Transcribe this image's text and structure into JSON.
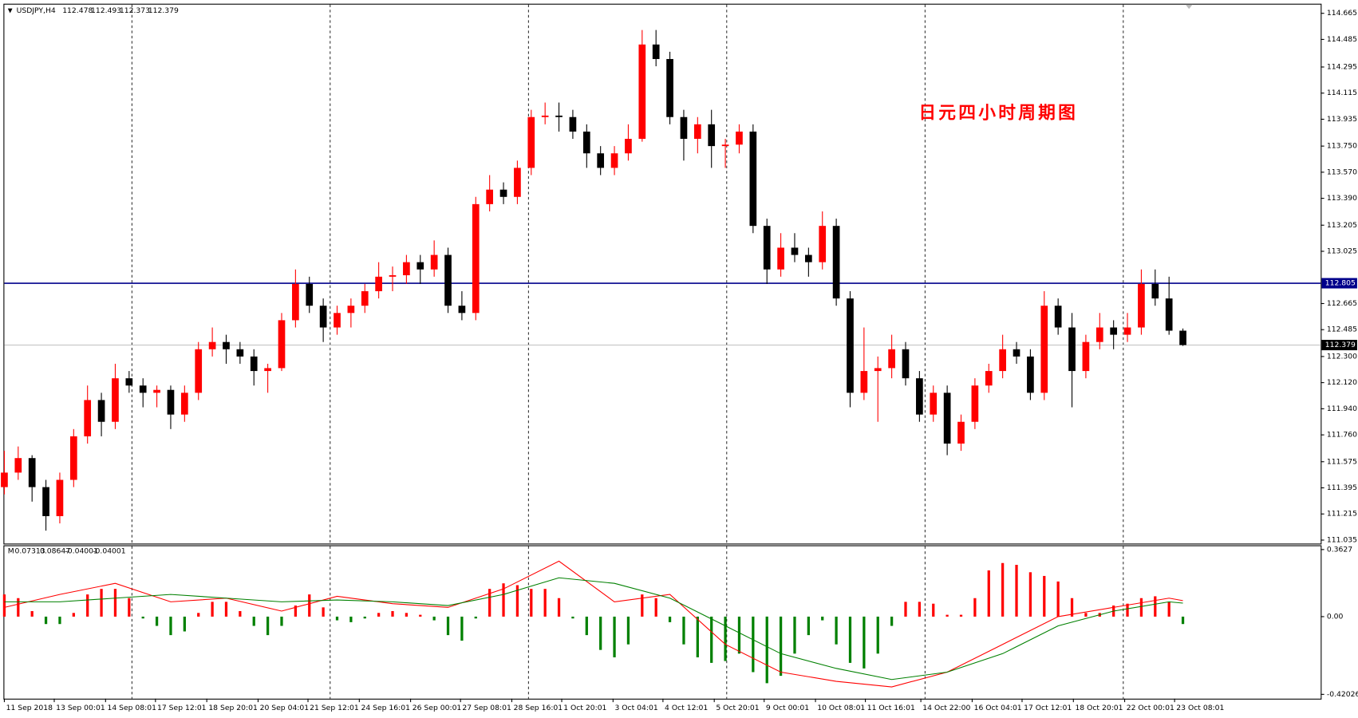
{
  "chart_data": {
    "type": "candlestick",
    "symbol": "USDJPY,H4",
    "annotation": "日元四小时周期图",
    "bull_color": "#ff0000",
    "bear_color": "#000000",
    "ylim": [
      111.011,
      114.725
    ],
    "xlim": [
      0,
      94.94
    ],
    "yticks": [
      114.665,
      114.485,
      114.295,
      114.115,
      113.935,
      {
        "value": 113.75,
        "label": "113.750"
      },
      {
        "value": 113.57,
        "label": "113.570"
      },
      {
        "value": 113.39,
        "label": "113.390"
      },
      113.205,
      113.025,
      112.665,
      112.485,
      {
        "value": 112.3,
        "label": "112.300"
      },
      {
        "value": 112.12,
        "label": "112.120"
      },
      {
        "value": 111.94,
        "label": "111.940"
      },
      {
        "value": 111.76,
        "label": "111.760"
      },
      111.575,
      111.395,
      111.215,
      111.035
    ],
    "hline": {
      "value": 112.805,
      "color": "#00008b"
    },
    "separators": [
      9.2,
      23.5,
      37.8,
      52.1,
      66.4,
      80.7
    ],
    "xticks": [
      {
        "value": 0,
        "label": "11 Sep 2018"
      },
      {
        "value": 3.6,
        "label": "13 Sep 00:01"
      },
      {
        "value": 7.3,
        "label": "14 Sep 08:01"
      },
      {
        "value": 10.9,
        "label": "17 Sep 12:01"
      },
      {
        "value": 14.6,
        "label": "18 Sep 20:01"
      },
      {
        "value": 18.3,
        "label": "20 Sep 04:01"
      },
      {
        "value": 21.9,
        "label": "21 Sep 12:01"
      },
      {
        "value": 25.6,
        "label": "24 Sep 16:01"
      },
      {
        "value": 29.3,
        "label": "26 Sep 00:01"
      },
      {
        "value": 32.9,
        "label": "27 Sep 08:01"
      },
      {
        "value": 36.6,
        "label": "28 Sep 16:01"
      },
      {
        "value": 40.2,
        "label": "1 Oct 20:01"
      },
      {
        "value": 43.9,
        "label": "3 Oct 04:01"
      },
      {
        "value": 47.5,
        "label": "4 Oct 12:01"
      },
      {
        "value": 51.2,
        "label": "5 Oct 20:01"
      },
      {
        "value": 54.8,
        "label": "9 Oct 00:01"
      },
      {
        "value": 58.5,
        "label": "10 Oct 08:01"
      },
      {
        "value": 62.1,
        "label": "11 Oct 16:01"
      },
      {
        "value": 66.1,
        "label": "14 Oct 22:00"
      },
      {
        "value": 69.8,
        "label": "16 Oct 04:01"
      },
      {
        "value": 73.4,
        "label": "17 Oct 12:01"
      },
      {
        "value": 77.1,
        "label": "18 Oct 20:01"
      },
      {
        "value": 80.8,
        "label": "22 Oct 00:01"
      },
      {
        "value": 84.4,
        "label": "23 Oct 08:01"
      }
    ],
    "ohlc": [
      [
        111.4,
        111.65,
        111.35,
        111.5
      ],
      [
        111.5,
        111.68,
        111.45,
        111.6
      ],
      [
        111.6,
        111.62,
        111.3,
        111.4
      ],
      [
        111.4,
        111.45,
        111.1,
        111.2
      ],
      [
        111.2,
        111.5,
        111.15,
        111.45
      ],
      [
        111.45,
        111.8,
        111.4,
        111.75
      ],
      [
        111.75,
        112.1,
        111.7,
        112.0
      ],
      [
        112.0,
        112.05,
        111.75,
        111.85
      ],
      [
        111.85,
        112.25,
        111.8,
        112.15
      ],
      [
        112.15,
        112.2,
        112.05,
        112.1
      ],
      [
        112.1,
        112.15,
        111.95,
        112.05
      ],
      [
        112.05,
        112.1,
        111.95,
        112.07
      ],
      [
        112.07,
        112.1,
        111.8,
        111.9
      ],
      [
        111.9,
        112.1,
        111.85,
        112.05
      ],
      [
        112.05,
        112.4,
        112.0,
        112.35
      ],
      [
        112.35,
        112.5,
        112.3,
        112.4
      ],
      [
        112.4,
        112.45,
        112.25,
        112.35
      ],
      [
        112.35,
        112.4,
        112.25,
        112.3
      ],
      [
        112.3,
        112.35,
        112.1,
        112.2
      ],
      [
        112.2,
        112.25,
        112.05,
        112.22
      ],
      [
        112.22,
        112.6,
        112.2,
        112.55
      ],
      [
        112.55,
        112.9,
        112.5,
        112.8
      ],
      [
        112.8,
        112.85,
        112.6,
        112.65
      ],
      [
        112.65,
        112.7,
        112.4,
        112.5
      ],
      [
        112.5,
        112.65,
        112.45,
        112.6
      ],
      [
        112.6,
        112.7,
        112.5,
        112.65
      ],
      [
        112.65,
        112.8,
        112.6,
        112.75
      ],
      [
        112.75,
        112.95,
        112.7,
        112.85
      ],
      [
        112.85,
        112.92,
        112.75,
        112.86
      ],
      [
        112.86,
        113.0,
        112.8,
        112.95
      ],
      [
        112.95,
        113.0,
        112.8,
        112.9
      ],
      [
        112.9,
        113.1,
        112.85,
        113.0
      ],
      [
        113.0,
        113.05,
        112.6,
        112.65
      ],
      [
        112.65,
        112.75,
        112.55,
        112.6
      ],
      [
        112.6,
        113.4,
        112.55,
        113.35
      ],
      [
        113.35,
        113.55,
        113.3,
        113.45
      ],
      [
        113.45,
        113.5,
        113.35,
        113.4
      ],
      [
        113.4,
        113.65,
        113.35,
        113.6
      ],
      [
        113.6,
        114.0,
        113.55,
        113.95
      ],
      [
        113.95,
        114.05,
        113.9,
        113.96
      ],
      [
        113.96,
        114.05,
        113.85,
        113.95
      ],
      [
        113.95,
        114.0,
        113.8,
        113.85
      ],
      [
        113.85,
        113.9,
        113.6,
        113.7
      ],
      [
        113.7,
        113.75,
        113.55,
        113.6
      ],
      [
        113.6,
        113.75,
        113.55,
        113.7
      ],
      [
        113.7,
        113.9,
        113.65,
        113.8
      ],
      [
        113.8,
        114.55,
        113.78,
        114.45
      ],
      [
        114.45,
        114.55,
        114.3,
        114.35
      ],
      [
        114.35,
        114.4,
        113.9,
        113.95
      ],
      [
        113.95,
        114.0,
        113.65,
        113.8
      ],
      [
        113.8,
        113.95,
        113.7,
        113.9
      ],
      [
        113.9,
        114.0,
        113.6,
        113.75
      ],
      [
        113.75,
        113.8,
        113.6,
        113.76
      ],
      [
        113.76,
        113.9,
        113.7,
        113.85
      ],
      [
        113.85,
        113.9,
        113.15,
        113.2
      ],
      [
        113.2,
        113.25,
        112.8,
        112.9
      ],
      [
        112.9,
        113.15,
        112.85,
        113.05
      ],
      [
        113.05,
        113.15,
        112.95,
        113.0
      ],
      [
        113.0,
        113.05,
        112.85,
        112.95
      ],
      [
        112.95,
        113.3,
        112.9,
        113.2
      ],
      [
        113.2,
        113.25,
        112.65,
        112.7
      ],
      [
        112.7,
        112.75,
        111.95,
        112.05
      ],
      [
        112.05,
        112.5,
        112.0,
        112.2
      ],
      [
        112.2,
        112.3,
        111.85,
        112.22
      ],
      [
        112.22,
        112.45,
        112.15,
        112.35
      ],
      [
        112.35,
        112.4,
        112.1,
        112.15
      ],
      [
        112.15,
        112.2,
        111.85,
        111.9
      ],
      [
        111.9,
        112.1,
        111.85,
        112.05
      ],
      [
        112.05,
        112.1,
        111.62,
        111.7
      ],
      [
        111.7,
        111.9,
        111.65,
        111.85
      ],
      [
        111.85,
        112.15,
        111.8,
        112.1
      ],
      [
        112.1,
        112.25,
        112.05,
        112.2
      ],
      [
        112.2,
        112.45,
        112.15,
        112.35
      ],
      [
        112.35,
        112.4,
        112.25,
        112.3
      ],
      [
        112.3,
        112.35,
        112.0,
        112.05
      ],
      [
        112.05,
        112.75,
        112.0,
        112.65
      ],
      [
        112.65,
        112.7,
        112.45,
        112.5
      ],
      [
        112.5,
        112.6,
        111.95,
        112.2
      ],
      [
        112.2,
        112.45,
        112.15,
        112.4
      ],
      [
        112.4,
        112.6,
        112.35,
        112.5
      ],
      [
        112.5,
        112.55,
        112.35,
        112.45
      ],
      [
        112.45,
        112.6,
        112.4,
        112.5
      ],
      [
        112.5,
        112.9,
        112.45,
        112.8
      ],
      [
        112.8,
        112.9,
        112.65,
        112.7
      ],
      [
        112.7,
        112.85,
        112.45,
        112.478
      ],
      [
        112.478,
        112.493,
        112.373,
        112.379
      ]
    ],
    "indicator": {
      "label": "M",
      "printed": [
        0.07313,
        0.08647,
        -0.04001,
        -0.04001
      ],
      "ylim": [
        -0.4436,
        0.381
      ],
      "yticks": [
        0.3627,
        {
          "value": 0,
          "label": "0.00"
        },
        -0.42026
      ],
      "pos_color": "#ff0000",
      "neg_color": "#008000",
      "histogram": [
        0.12,
        0.1,
        0.03,
        -0.04,
        -0.04,
        0.02,
        0.12,
        0.15,
        0.15,
        0.1,
        -0.01,
        -0.05,
        -0.1,
        -0.08,
        0.02,
        0.08,
        0.08,
        0.03,
        -0.05,
        -0.1,
        -0.05,
        0.06,
        0.12,
        0.05,
        -0.02,
        -0.03,
        -0.01,
        0.02,
        0.03,
        0.02,
        0.01,
        -0.02,
        -0.1,
        -0.13,
        -0.01,
        0.15,
        0.18,
        0.17,
        0.15,
        0.15,
        0.1,
        -0.01,
        -0.1,
        -0.18,
        -0.22,
        -0.15,
        0.12,
        0.1,
        -0.03,
        -0.15,
        -0.22,
        -0.25,
        -0.24,
        -0.2,
        -0.3,
        -0.36,
        -0.32,
        -0.2,
        -0.1,
        -0.02,
        -0.15,
        -0.25,
        -0.28,
        -0.2,
        -0.05,
        0.08,
        0.08,
        0.07,
        0.01,
        0.01,
        0.1,
        0.25,
        0.29,
        0.28,
        0.24,
        0.22,
        0.19,
        0.1,
        0.02,
        0.02,
        0.06,
        0.07,
        0.1,
        0.11,
        0.08,
        -0.04001
      ],
      "lines": [
        {
          "color": "#ff0000",
          "x": [
            0,
            4,
            8,
            12,
            16,
            20,
            24,
            28,
            32,
            36,
            40,
            44,
            48,
            52,
            56,
            60,
            64,
            68,
            72,
            76,
            80,
            84,
            85
          ],
          "values": [
            0.05,
            0.12,
            0.18,
            0.08,
            0.1,
            0.03,
            0.11,
            0.07,
            0.05,
            0.15,
            0.3,
            0.08,
            0.12,
            -0.15,
            -0.3,
            -0.35,
            -0.38,
            -0.3,
            -0.15,
            0.0,
            0.05,
            0.1,
            0.08647
          ]
        },
        {
          "color": "#008000",
          "x": [
            0,
            4,
            8,
            12,
            16,
            20,
            24,
            28,
            32,
            36,
            40,
            44,
            48,
            52,
            56,
            60,
            64,
            68,
            72,
            76,
            80,
            84,
            85
          ],
          "values": [
            0.08,
            0.08,
            0.1,
            0.12,
            0.1,
            0.08,
            0.09,
            0.08,
            0.06,
            0.12,
            0.21,
            0.18,
            0.1,
            -0.05,
            -0.2,
            -0.28,
            -0.34,
            -0.3,
            -0.2,
            -0.05,
            0.03,
            0.08,
            0.07313
          ]
        }
      ]
    }
  }
}
